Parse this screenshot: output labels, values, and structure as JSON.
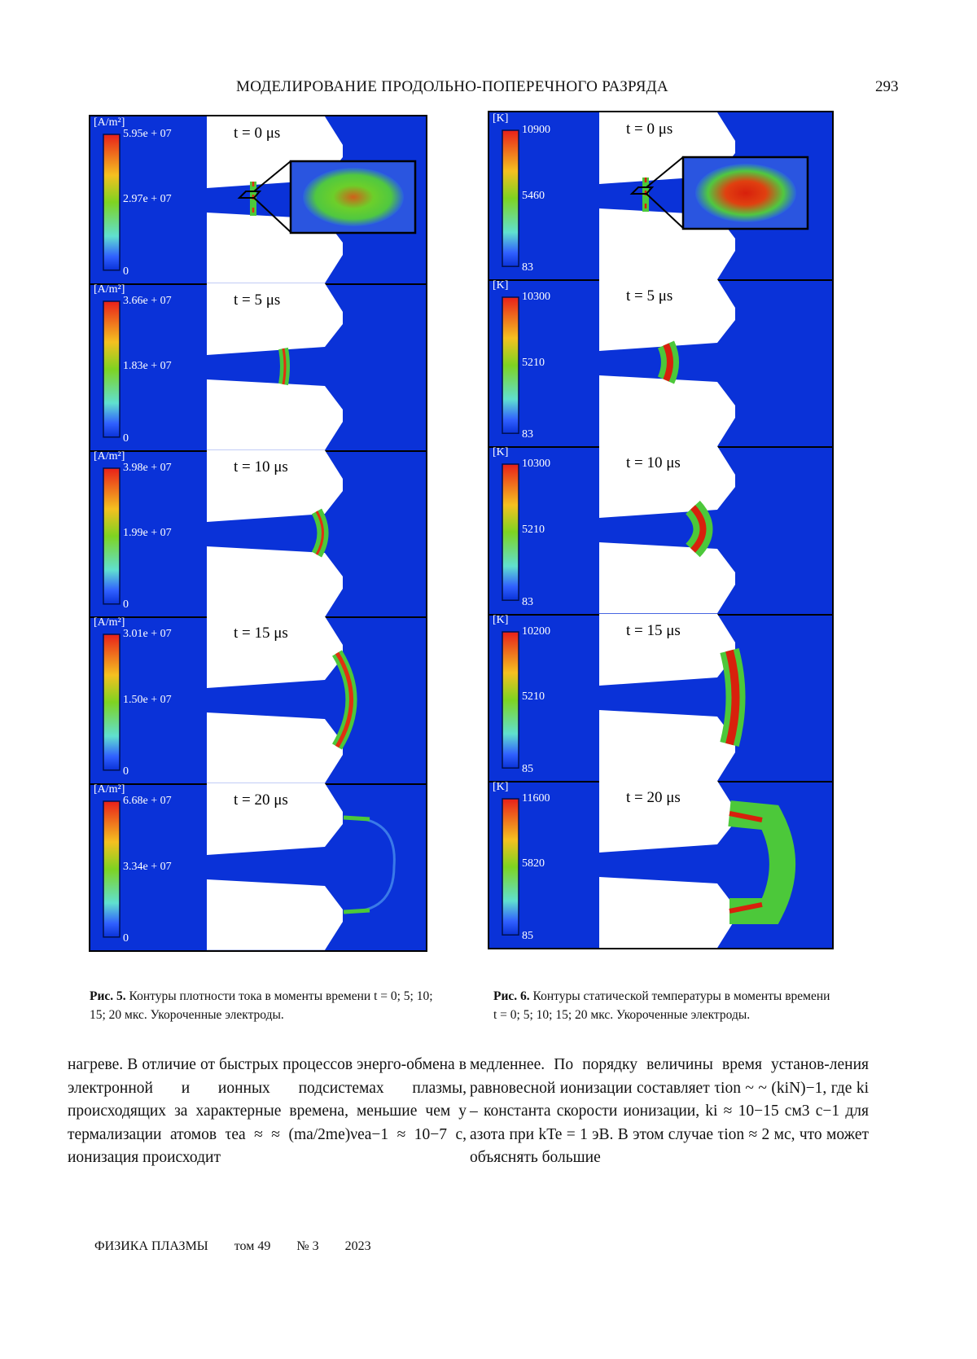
{
  "header": {
    "running_title": "МОДЕЛИРОВАНИЕ ПРОДОЛЬНО-ПОПЕРЕЧНОГО РАЗРЯДА",
    "page_number": "293"
  },
  "figure5": {
    "unit": "[A/m²]",
    "panels": [
      {
        "time": "t = 0 μs",
        "max": "5.95e + 07",
        "mid": "2.97e + 07",
        "min": "0"
      },
      {
        "time": "t = 5 μs",
        "max": "3.66e + 07",
        "mid": "1.83e + 07",
        "min": "0"
      },
      {
        "time": "t = 10 μs",
        "max": "3.98e + 07",
        "mid": "1.99e + 07",
        "min": "0"
      },
      {
        "time": "t = 15 μs",
        "max": "3.01e + 07",
        "mid": "1.50e + 07",
        "min": "0"
      },
      {
        "time": "t = 20 μs",
        "max": "6.68e + 07",
        "mid": "3.34e + 07",
        "min": "0"
      }
    ],
    "caption_label": "Рис. 5.",
    "caption_text": "Контуры плотности тока в моменты времени t = 0; 5; 10; 15; 20 мкс. Укороченные электроды."
  },
  "figure6": {
    "unit": "[K]",
    "panels": [
      {
        "time": "t = 0 μs",
        "max": "10900",
        "mid": "5460",
        "min": "83"
      },
      {
        "time": "t = 5 μs",
        "max": "10300",
        "mid": "5210",
        "min": "83"
      },
      {
        "time": "t = 10 μs",
        "max": "10300",
        "mid": "5210",
        "min": "83"
      },
      {
        "time": "t = 15 μs",
        "max": "10200",
        "mid": "5210",
        "min": "85"
      },
      {
        "time": "t = 20 μs",
        "max": "11600",
        "mid": "5820",
        "min": "85"
      }
    ],
    "caption_label": "Рис. 6.",
    "caption_text": "Контуры статической температуры в моменты времени t = 0; 5; 10; 15; 20 мкс. Укороченные электроды."
  },
  "colors": {
    "background_field": "#0a32d8",
    "electrode": "#ffffff"
  },
  "body": {
    "left_column": "нагреве. В отличие от быстрых процессов энерго-обмена в электронной и ионных подсистемах плазмы, происходящих за характерные времена, меньшие чем у термализации атомов τea ≈ ≈ (ma/2me)νea−1 ≈ 10−7 с, ионизация происходит",
    "right_column": "медленнее. По порядку величины время установ-ления равновесной ионизации составляет τion ~ ~ (kiN)−1, где ki – константа скорости ионизации, ki ≈ 10−15 см3 с−1 для азота при kTe = 1 эВ. В этом случае τion ≈ 2 мс, что может объяснять большие"
  },
  "footer": {
    "journal": "ФИЗИКА ПЛАЗМЫ",
    "volume": "том 49",
    "issue": "№ 3",
    "year": "2023"
  }
}
